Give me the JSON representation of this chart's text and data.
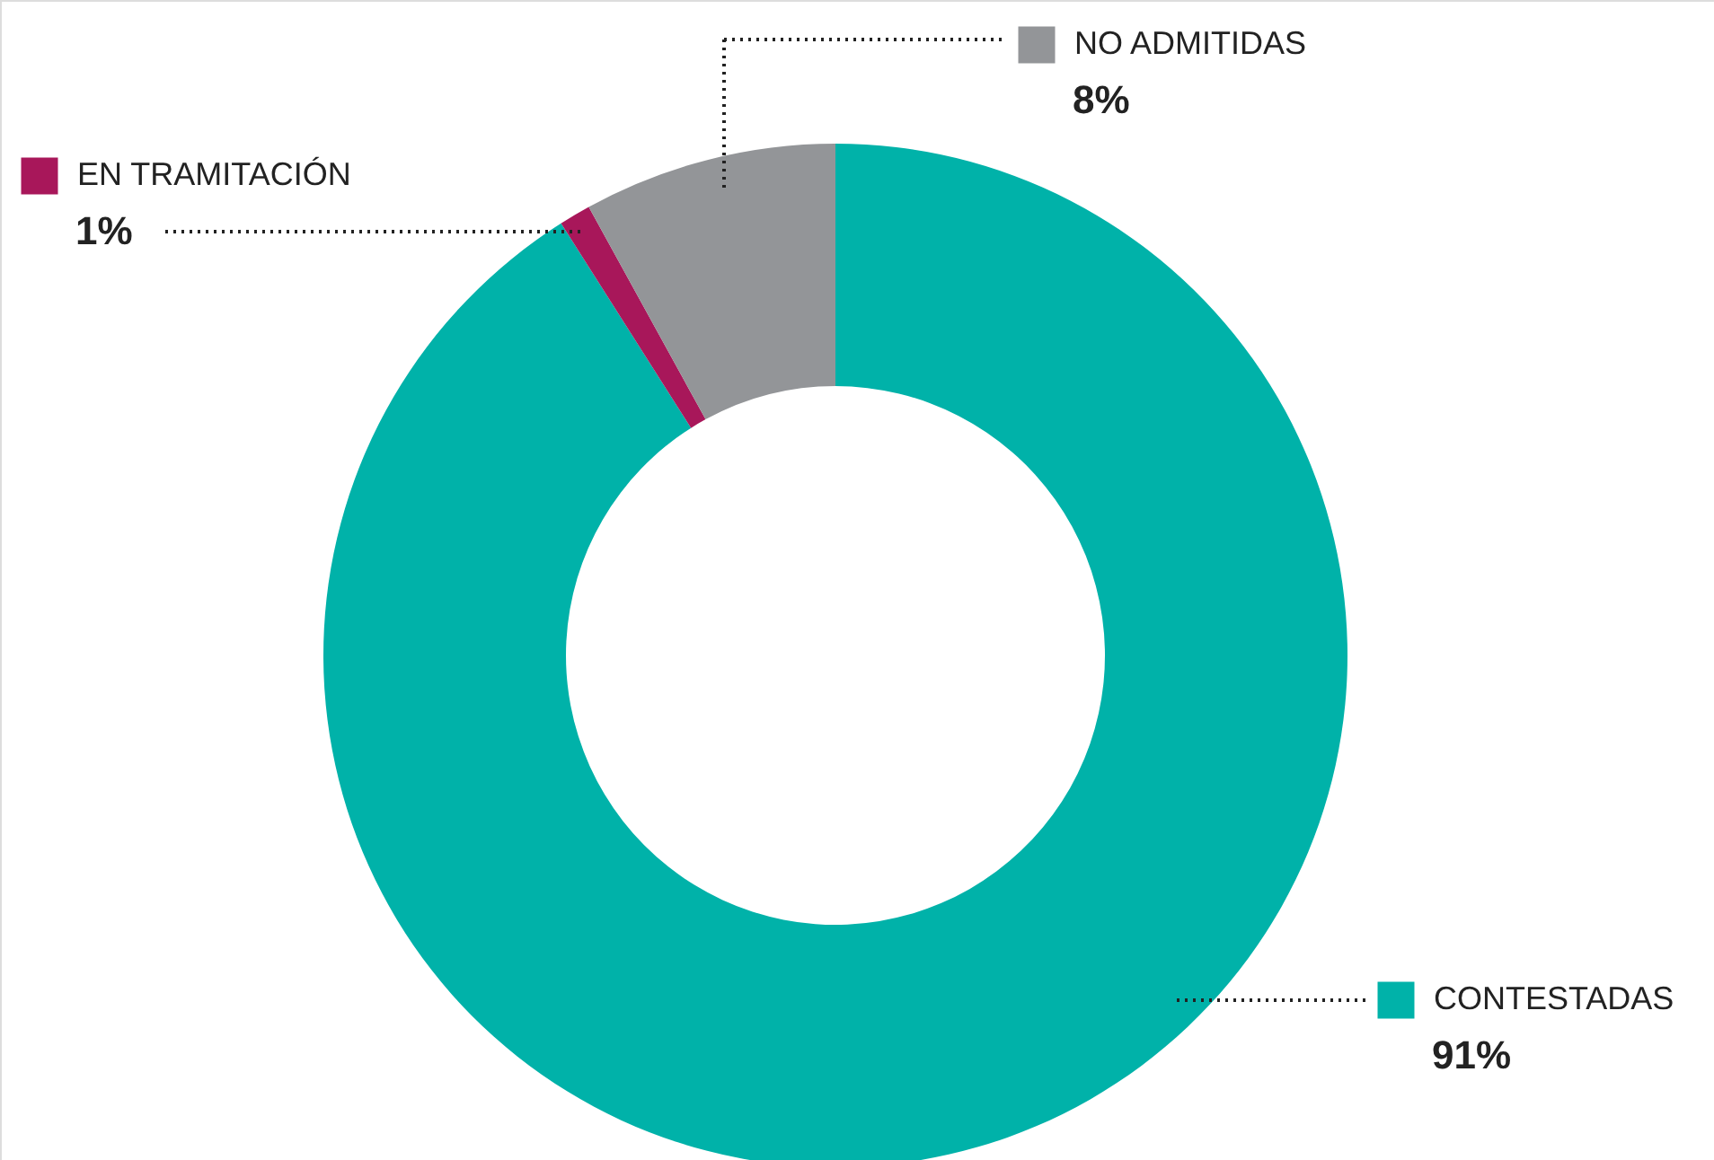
{
  "chart_data": {
    "type": "donut",
    "categories": [
      "CONTESTADAS",
      "EN TRAMITACIÓN",
      "NO ADMITIDAS"
    ],
    "values": [
      91,
      1,
      8
    ],
    "colors": [
      "#00b2a9",
      "#a8175a",
      "#939598"
    ],
    "value_labels": [
      "91%",
      "1%",
      "8%"
    ],
    "legend": "right"
  }
}
